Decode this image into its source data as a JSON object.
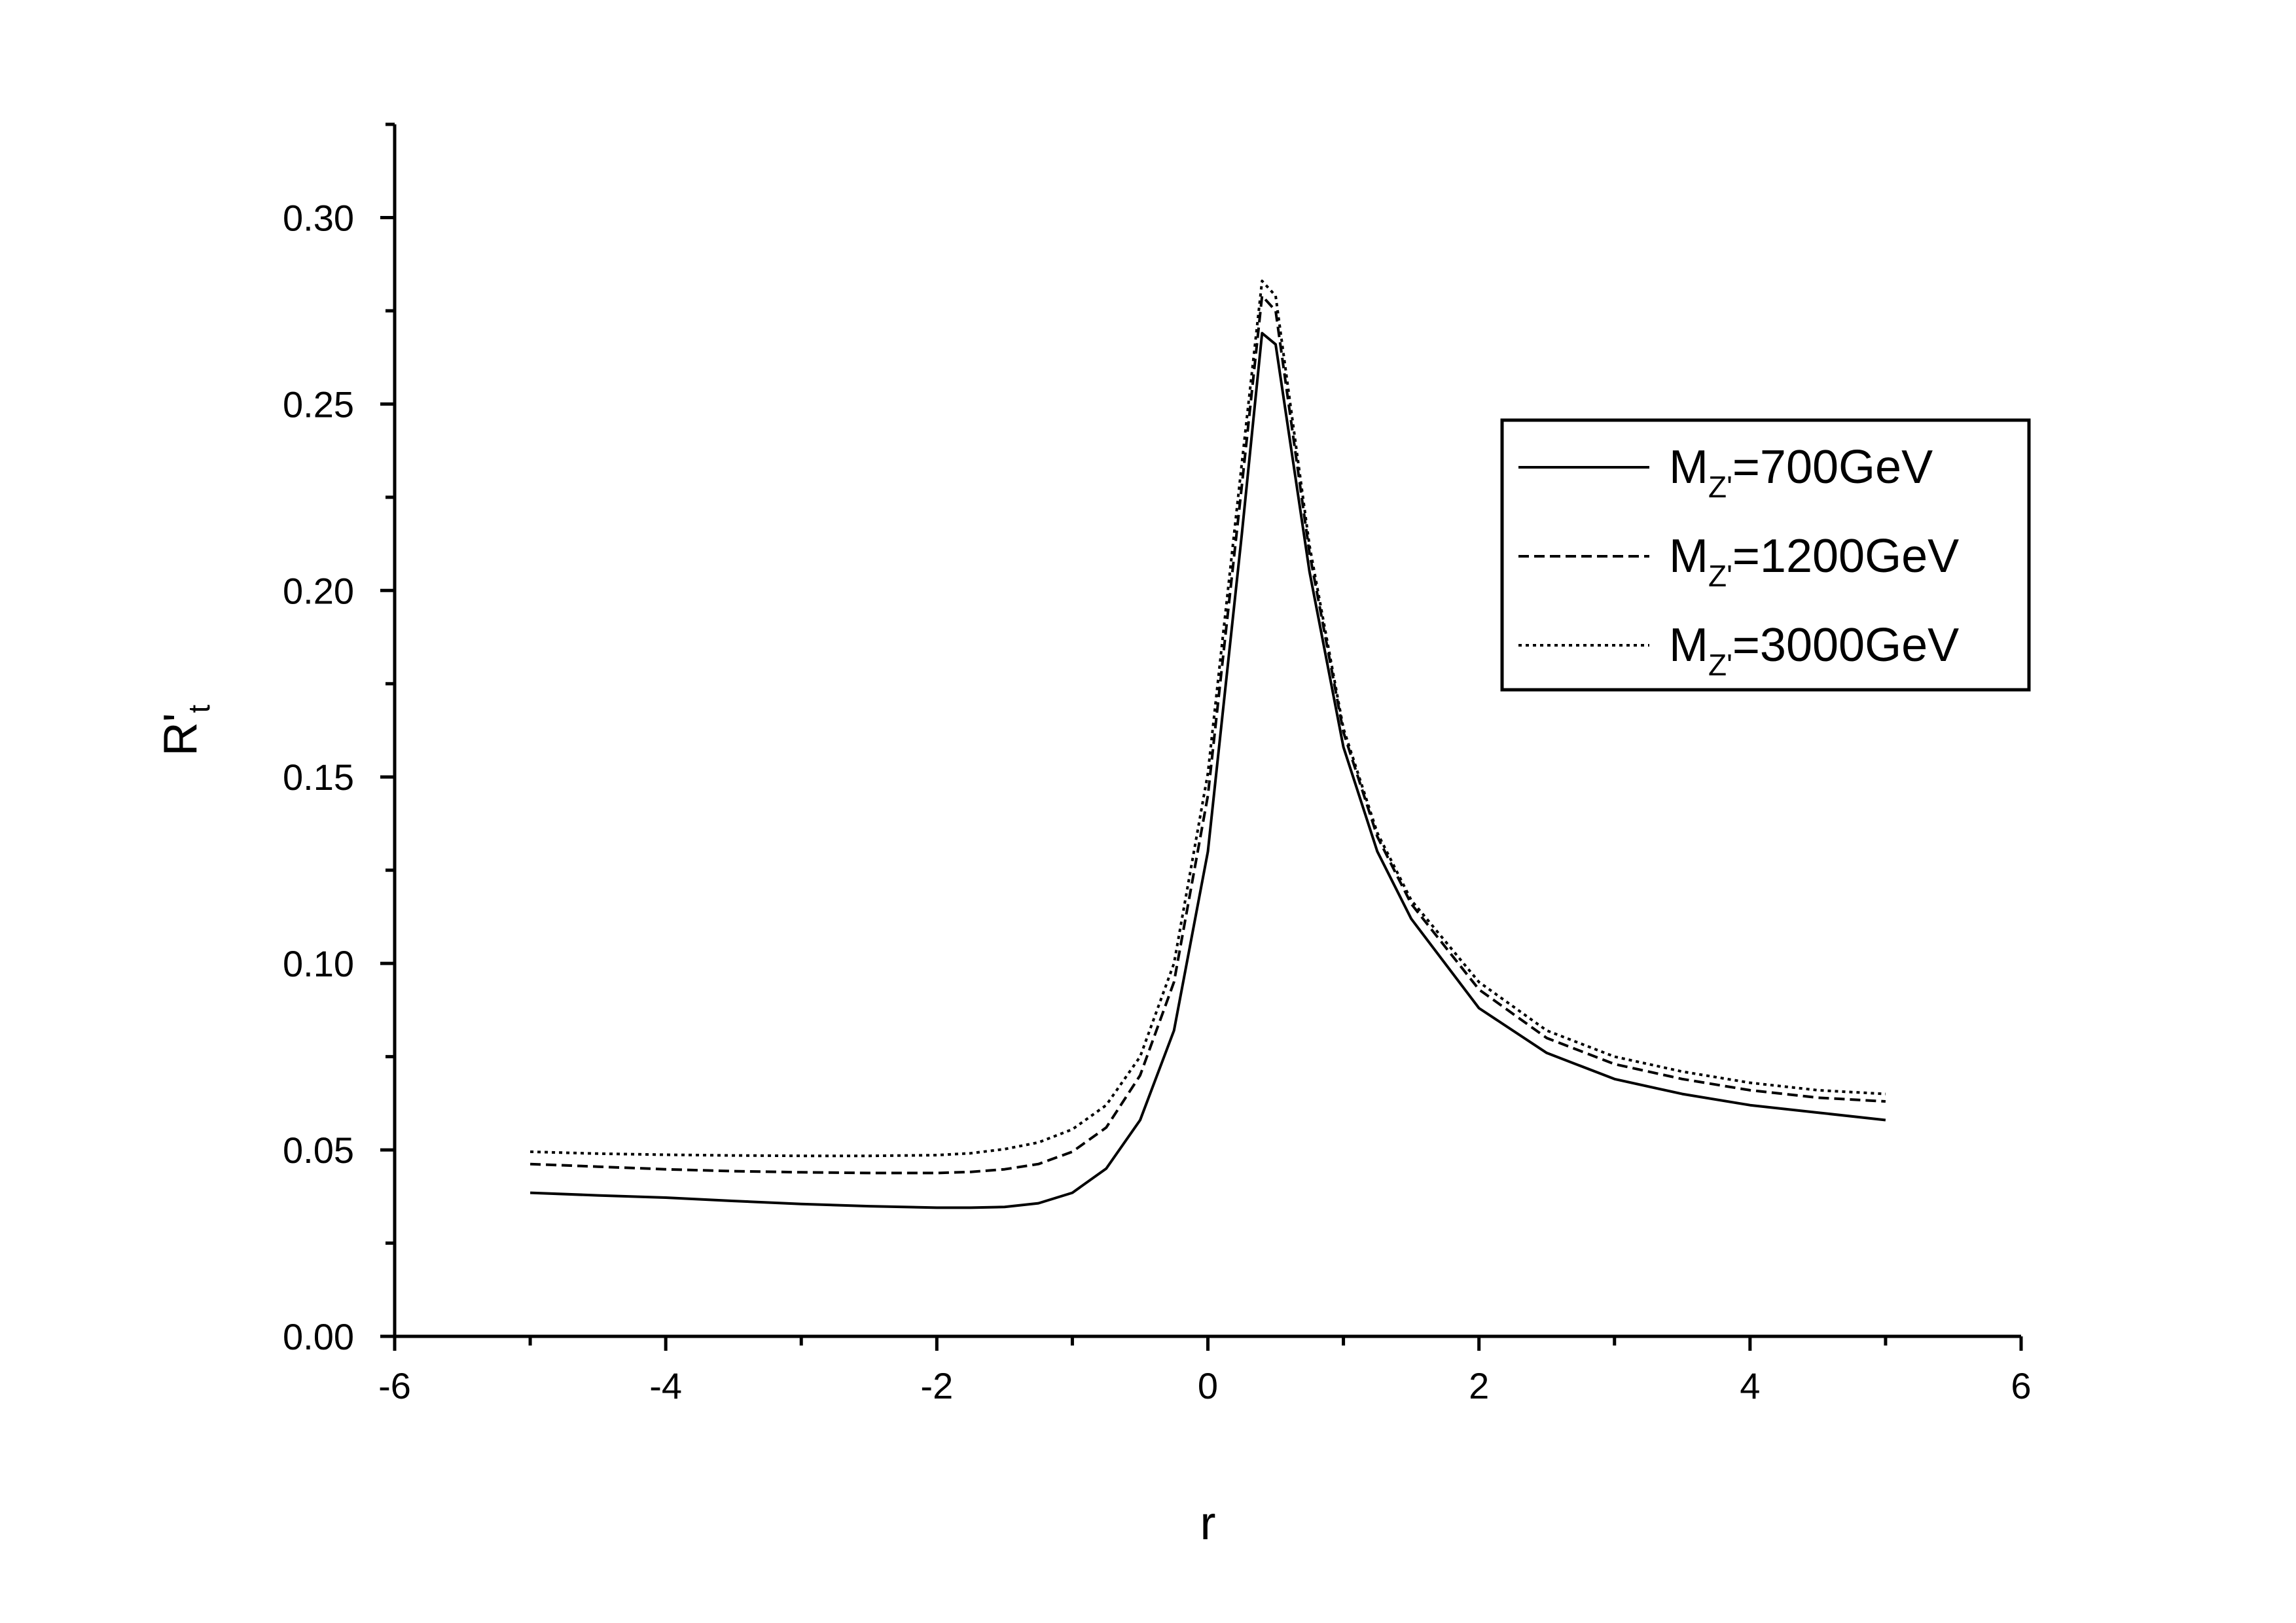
{
  "chart_data": {
    "type": "line",
    "title": "",
    "xlabel": "r",
    "ylabel": "R'",
    "ylabel_subscript": "t",
    "xlim": [
      -6,
      6
    ],
    "ylim": [
      0,
      0.325
    ],
    "x_ticks": [
      "-6",
      "-4",
      "-2",
      "0",
      "2",
      "4",
      "6"
    ],
    "y_ticks": [
      "0.00",
      "0.05",
      "0.10",
      "0.15",
      "0.20",
      "0.25",
      "0.30"
    ],
    "grid": false,
    "legend_position": "top-right",
    "series": [
      {
        "name": "M",
        "name_subscript": "Z'",
        "name_suffix": "=700GeV",
        "line_style": "solid",
        "x": [
          -5,
          -4.5,
          -4,
          -3.5,
          -3,
          -2.5,
          -2,
          -1.75,
          -1.5,
          -1.25,
          -1,
          -0.75,
          -0.5,
          -0.25,
          0,
          0.25,
          0.4,
          0.5,
          0.75,
          1,
          1.25,
          1.5,
          2,
          2.5,
          3,
          3.5,
          4,
          4.5,
          5
        ],
        "y": [
          0.0385,
          0.0378,
          0.0372,
          0.0363,
          0.0355,
          0.0349,
          0.0345,
          0.0345,
          0.0347,
          0.0357,
          0.0385,
          0.045,
          0.058,
          0.082,
          0.13,
          0.215,
          0.269,
          0.266,
          0.205,
          0.158,
          0.13,
          0.112,
          0.088,
          0.076,
          0.069,
          0.065,
          0.062,
          0.06,
          0.058
        ]
      },
      {
        "name": "M",
        "name_subscript": "Z'",
        "name_suffix": "=1200GeV",
        "line_style": "dashed",
        "x": [
          -5,
          -4.5,
          -4,
          -3.5,
          -3,
          -2.5,
          -2,
          -1.75,
          -1.5,
          -1.25,
          -1,
          -0.75,
          -0.5,
          -0.25,
          0,
          0.25,
          0.4,
          0.5,
          0.75,
          1,
          1.25,
          1.5,
          2,
          2.5,
          3,
          3.5,
          4,
          4.5,
          5
        ],
        "y": [
          0.0462,
          0.0455,
          0.0448,
          0.0443,
          0.044,
          0.0438,
          0.0438,
          0.0441,
          0.0448,
          0.0462,
          0.0495,
          0.056,
          0.07,
          0.095,
          0.145,
          0.228,
          0.279,
          0.275,
          0.21,
          0.162,
          0.134,
          0.116,
          0.093,
          0.08,
          0.073,
          0.069,
          0.066,
          0.064,
          0.063
        ]
      },
      {
        "name": "M",
        "name_subscript": "Z'",
        "name_suffix": "=3000GeV",
        "line_style": "dotted",
        "x": [
          -5,
          -4.5,
          -4,
          -3.5,
          -3,
          -2.5,
          -2,
          -1.75,
          -1.5,
          -1.25,
          -1,
          -0.75,
          -0.5,
          -0.25,
          0,
          0.25,
          0.4,
          0.5,
          0.75,
          1,
          1.25,
          1.5,
          2,
          2.5,
          3,
          3.5,
          4,
          4.5,
          5
        ],
        "y": [
          0.0495,
          0.049,
          0.0487,
          0.0485,
          0.0484,
          0.0484,
          0.0486,
          0.0491,
          0.0502,
          0.052,
          0.0555,
          0.062,
          0.075,
          0.1,
          0.151,
          0.234,
          0.283,
          0.279,
          0.212,
          0.163,
          0.135,
          0.117,
          0.095,
          0.082,
          0.075,
          0.071,
          0.068,
          0.066,
          0.065
        ]
      }
    ]
  }
}
